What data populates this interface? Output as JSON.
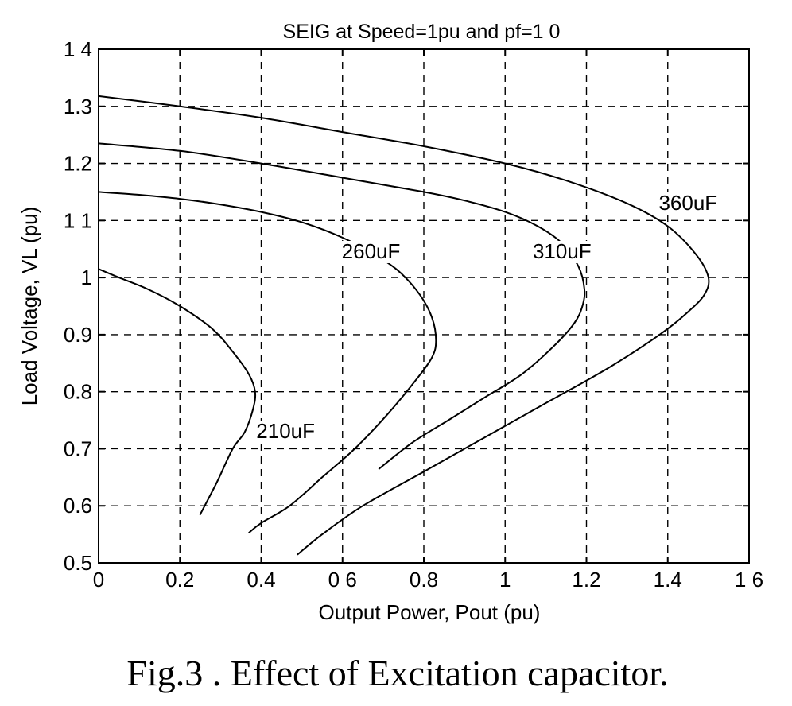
{
  "chart_data": {
    "type": "line",
    "title": "SEIG at Speed=1pu and pf=1 0",
    "xlabel": "Output Power, Pout (pu)",
    "ylabel": "Load Voltage, VL (pu)",
    "xlim": [
      0,
      1.6
    ],
    "ylim": [
      0.5,
      1.4
    ],
    "xticks": [
      0,
      0.2,
      0.4,
      0.6,
      0.8,
      1,
      1.2,
      1.4,
      1.6
    ],
    "xtick_labels": [
      "0",
      "0.2",
      "0.4",
      "0 6",
      "0.8",
      "1",
      "1.2",
      "1.4",
      "1 6"
    ],
    "yticks": [
      0.5,
      0.6,
      0.7,
      0.8,
      0.9,
      1,
      1.1,
      1.2,
      1.3,
      1.4
    ],
    "ytick_labels": [
      "0.5",
      "0.6",
      "0.7",
      "0.8",
      "0.9",
      "1",
      "1 1",
      "1.2",
      "1.3",
      "1 4"
    ],
    "grid": true,
    "series": [
      {
        "name": "210uF",
        "x": [
          0,
          0.05,
          0.12,
          0.2,
          0.28,
          0.33,
          0.37,
          0.385,
          0.38,
          0.36,
          0.33,
          0.29,
          0.25
        ],
        "y": [
          1.015,
          1.0,
          0.98,
          0.95,
          0.91,
          0.87,
          0.83,
          0.8,
          0.77,
          0.73,
          0.7,
          0.64,
          0.585
        ]
      },
      {
        "name": "260uF",
        "x": [
          0,
          0.1,
          0.2,
          0.3,
          0.4,
          0.5,
          0.6,
          0.68,
          0.74,
          0.79,
          0.82,
          0.83,
          0.82,
          0.78,
          0.71,
          0.63,
          0.55,
          0.47,
          0.4,
          0.37
        ],
        "y": [
          1.15,
          1.145,
          1.138,
          1.128,
          1.115,
          1.097,
          1.07,
          1.04,
          1.01,
          0.97,
          0.93,
          0.89,
          0.86,
          0.82,
          0.76,
          0.7,
          0.65,
          0.6,
          0.57,
          0.553
        ]
      },
      {
        "name": "310uF",
        "x": [
          0,
          0.2,
          0.4,
          0.6,
          0.8,
          0.9,
          1.0,
          1.08,
          1.14,
          1.18,
          1.195,
          1.19,
          1.17,
          1.12,
          1.04,
          0.95,
          0.86,
          0.77,
          0.69
        ],
        "y": [
          1.235,
          1.222,
          1.2,
          1.175,
          1.15,
          1.135,
          1.115,
          1.09,
          1.06,
          1.02,
          0.98,
          0.95,
          0.92,
          0.88,
          0.83,
          0.79,
          0.75,
          0.71,
          0.665
        ]
      },
      {
        "name": "360uF",
        "x": [
          0,
          0.2,
          0.4,
          0.6,
          0.8,
          1.0,
          1.15,
          1.3,
          1.4,
          1.47,
          1.5,
          1.49,
          1.45,
          1.38,
          1.25,
          1.1,
          0.95,
          0.8,
          0.65,
          0.55,
          0.49
        ],
        "y": [
          1.318,
          1.3,
          1.28,
          1.255,
          1.23,
          1.2,
          1.17,
          1.13,
          1.09,
          1.04,
          1.0,
          0.97,
          0.94,
          0.9,
          0.84,
          0.78,
          0.72,
          0.66,
          0.6,
          0.55,
          0.515
        ]
      }
    ],
    "annotations": [
      {
        "text": "210uF",
        "x": 0.46,
        "y": 0.72
      },
      {
        "text": "260uF",
        "x": 0.67,
        "y": 1.035
      },
      {
        "text": "310uF",
        "x": 1.14,
        "y": 1.035
      },
      {
        "text": "360uF",
        "x": 1.45,
        "y": 1.12
      }
    ]
  },
  "caption": "Fig.3 . Effect of Excitation capacitor."
}
